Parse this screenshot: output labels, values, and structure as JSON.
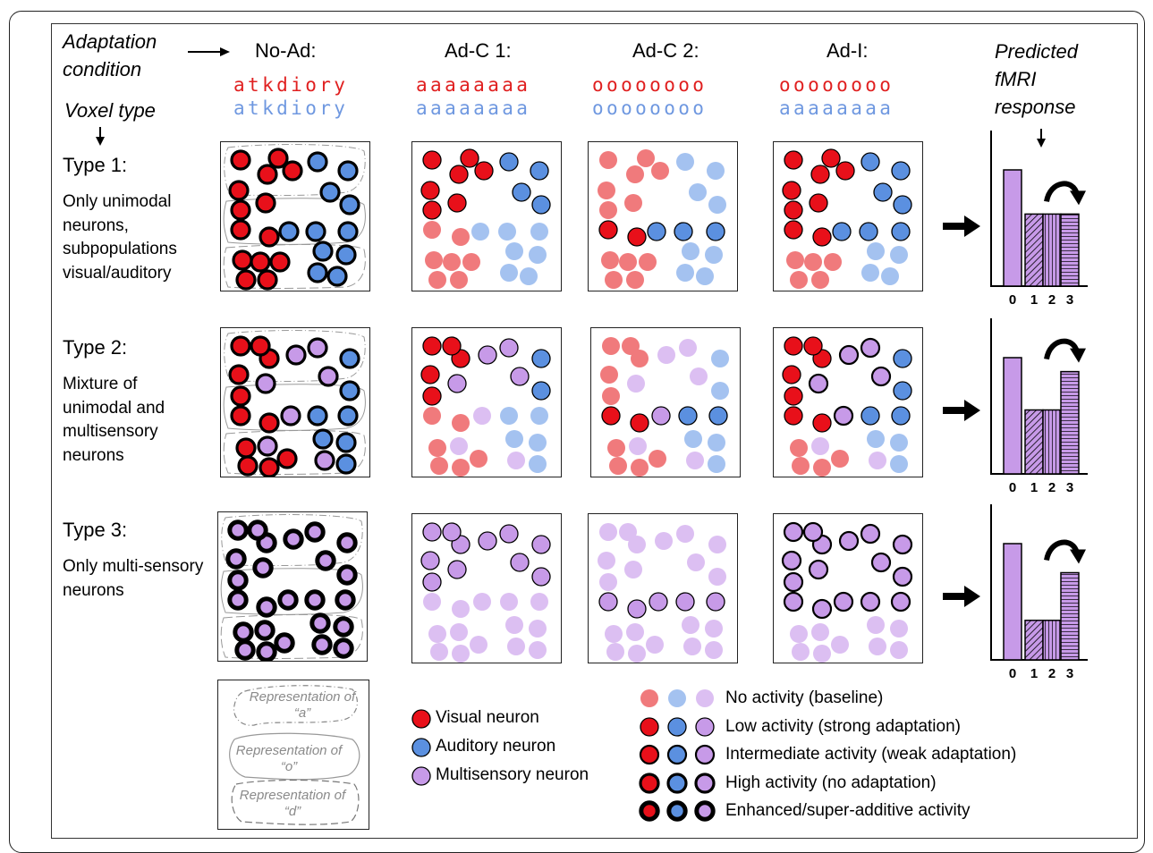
{
  "header": {
    "adaptation_condition": [
      "Adaptation",
      "condition"
    ],
    "voxel_type": "Voxel type",
    "predicted": [
      "Predicted",
      "fMRI",
      "response"
    ]
  },
  "conditions": [
    {
      "label": "No-Ad:",
      "visual": "atkdiory",
      "auditory": "atkdiory"
    },
    {
      "label": "Ad-C 1:",
      "visual": "aaaaaaaa",
      "auditory": "aaaaaaaa"
    },
    {
      "label": "Ad-C 2:",
      "visual": "oooooooo",
      "auditory": "oooooooo"
    },
    {
      "label": "Ad-I:",
      "visual": "oooooooo",
      "auditory": "aaaaaaaa"
    }
  ],
  "rows": [
    {
      "title": "Type 1:",
      "desc": "Only unimodal neurons, subpopulations visual/auditory",
      "bars": [
        1.0,
        0.62,
        0.62,
        0.62
      ]
    },
    {
      "title": "Type 2:",
      "desc": "Mixture of unimodal and multisensory neurons",
      "bars": [
        1.0,
        0.55,
        0.55,
        0.88
      ]
    },
    {
      "title": "Type 3:",
      "desc": "Only multi-sensory neurons",
      "bars": [
        1.0,
        0.34,
        0.34,
        0.75
      ]
    }
  ],
  "bar_ticks": [
    "0",
    "1",
    "2",
    "3"
  ],
  "representations": [
    "Representation of “a”",
    "Representation of “o”",
    "Representation of “d”"
  ],
  "neuron_legend": [
    {
      "label": "Visual neuron",
      "color": "#e8101a"
    },
    {
      "label": "Auditory neuron",
      "color": "#5b90e0"
    },
    {
      "label": "Multisensory neuron",
      "color": "#c79ae8"
    }
  ],
  "activity_legend": [
    "No activity (baseline)",
    "Low activity (strong adaptation)",
    "Intermediate activity (weak adaptation)",
    "High activity (no adaptation)",
    "Enhanced/super-additive activity"
  ],
  "colors": {
    "visual": "#e8101a",
    "visual_light": "#f07a7c",
    "auditory": "#5b90e0",
    "auditory_light": "#a4c2f0",
    "multi": "#c79ae8",
    "multi_light": "#dcbff2",
    "text_red": "#e02020",
    "text_blue": "#6f98e0",
    "bar_fill": "#c79ae8"
  }
}
